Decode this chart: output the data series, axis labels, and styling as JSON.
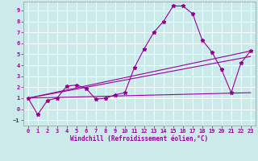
{
  "xlabel": "Windchill (Refroidissement éolien,°C)",
  "background_color": "#cceaea",
  "grid_color": "#ffffff",
  "line_color": "#990099",
  "xlim": [
    -0.5,
    23.5
  ],
  "ylim": [
    -1.5,
    9.8
  ],
  "xticks": [
    0,
    1,
    2,
    3,
    4,
    5,
    6,
    7,
    8,
    9,
    10,
    11,
    12,
    13,
    14,
    15,
    16,
    17,
    18,
    19,
    20,
    21,
    22,
    23
  ],
  "yticks": [
    -1,
    0,
    1,
    2,
    3,
    4,
    5,
    6,
    7,
    8,
    9
  ],
  "series": [
    {
      "x": [
        0,
        1,
        2,
        3,
        4,
        5,
        6,
        7,
        8,
        9,
        10,
        11,
        12,
        13,
        14,
        15,
        16,
        17,
        18,
        19,
        20,
        21,
        22,
        23
      ],
      "y": [
        1.0,
        -0.5,
        0.8,
        1.0,
        2.1,
        2.2,
        1.9,
        0.9,
        1.0,
        1.3,
        1.5,
        3.8,
        5.5,
        7.0,
        8.0,
        9.4,
        9.4,
        8.7,
        6.3,
        5.2,
        3.6,
        1.5,
        4.2,
        5.3
      ],
      "marker": "*",
      "markersize": 3.5
    },
    {
      "x": [
        0,
        23
      ],
      "y": [
        1.0,
        5.3
      ],
      "marker": null
    },
    {
      "x": [
        0,
        23
      ],
      "y": [
        1.0,
        4.8
      ],
      "marker": null
    },
    {
      "x": [
        0,
        23
      ],
      "y": [
        1.0,
        1.5
      ],
      "marker": null
    }
  ]
}
